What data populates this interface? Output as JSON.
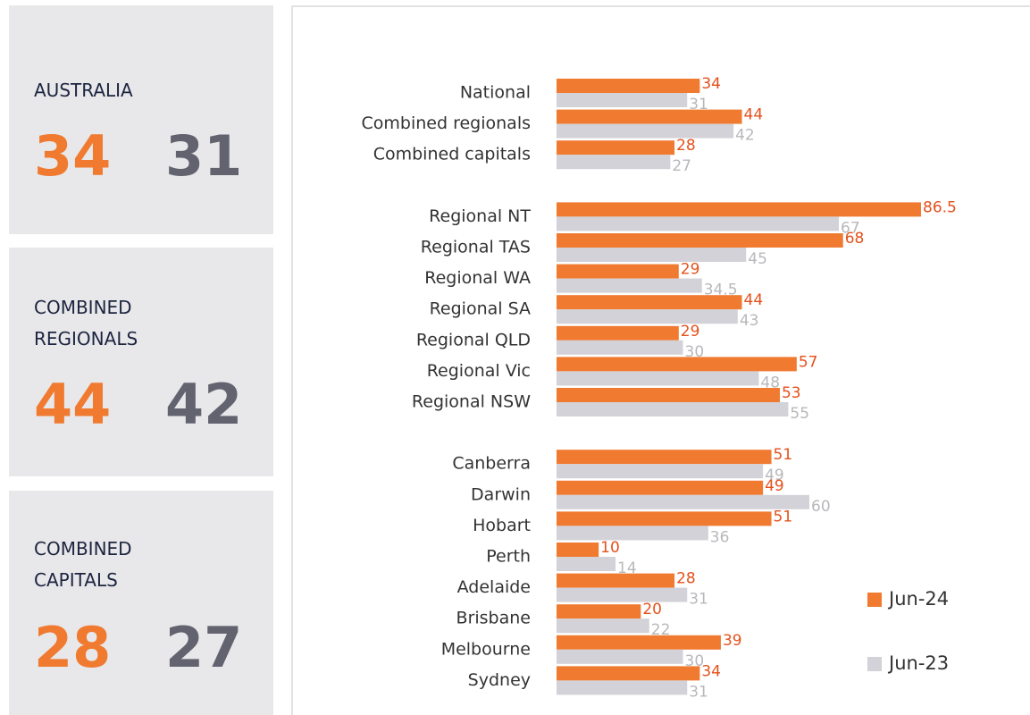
{
  "cards": [
    {
      "title": "AUSTRALIA",
      "current": 34,
      "previous": 31
    },
    {
      "title": "COMBINED REGIONALS",
      "current": 44,
      "previous": 42
    },
    {
      "title": "COMBINED CAPITALS",
      "current": 28,
      "previous": 27
    }
  ],
  "chart_data": {
    "type": "bar",
    "orientation": "horizontal",
    "categories": [
      "National",
      "Combined regionals",
      "Combined capitals",
      null,
      "Regional NT",
      "Regional TAS",
      "Regional WA",
      "Regional SA",
      "Regional QLD",
      "Regional Vic",
      "Regional NSW",
      null,
      "Canberra",
      "Darwin",
      "Hobart",
      "Perth",
      "Adelaide",
      "Brisbane",
      "Melbourne",
      "Sydney"
    ],
    "series": [
      {
        "name": "Jun-24",
        "color": "#f07a30",
        "label_color": "#e4511c",
        "values": [
          34,
          44,
          28,
          null,
          86.5,
          68,
          29,
          44,
          29,
          57,
          53,
          null,
          51,
          49,
          51,
          10,
          28,
          20,
          39,
          34
        ]
      },
      {
        "name": "Jun-23",
        "color": "#d2d2d8",
        "label_color": "#b8b8bc",
        "values": [
          31,
          42,
          27,
          null,
          67,
          45,
          34.5,
          43,
          30,
          48,
          55,
          null,
          49,
          60,
          36,
          14,
          31,
          22,
          30,
          31
        ]
      }
    ],
    "legend": "lower-right"
  }
}
